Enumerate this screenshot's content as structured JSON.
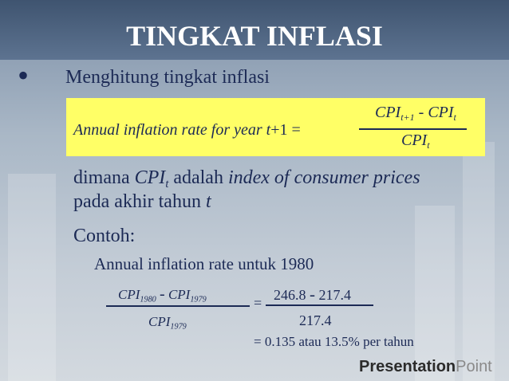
{
  "title": "TINGKAT INFLASI",
  "bullet": "Menghitung tingkat inflasi",
  "formula": {
    "lhs": "Annual inflation rate for year ",
    "lhs_var": "t",
    "lhs_rest": "+1 =",
    "num_a": "CPI",
    "num_a_sub": "t+1",
    "minus": "-",
    "num_b": "CPI",
    "num_b_sub": "t",
    "den": "CPI",
    "den_sub": "t"
  },
  "definition": {
    "word": "dimana ",
    "var": "CPI",
    "var_sub": "t",
    "mid": " adalah ",
    "term": "index of consumer prices",
    "line2": "pada akhir tahun ",
    "line2_var": "t"
  },
  "example": {
    "heading": "Contoh:",
    "subheading": "Annual inflation rate untuk 1980",
    "num_a": "CPI",
    "num_a_sub": "1980",
    "minus": "-",
    "num_b": "CPI",
    "num_b_sub": "1979",
    "den": "CPI",
    "den_sub": "1979",
    "equals": "=",
    "num_val_a": "246.8",
    "num_minus": "-",
    "num_val_b": "217.4",
    "den_val": "217.4",
    "result": "=  0.135 atau 13.5% per tahun"
  },
  "logo": {
    "bold": "Presentation",
    "light": "Point"
  }
}
